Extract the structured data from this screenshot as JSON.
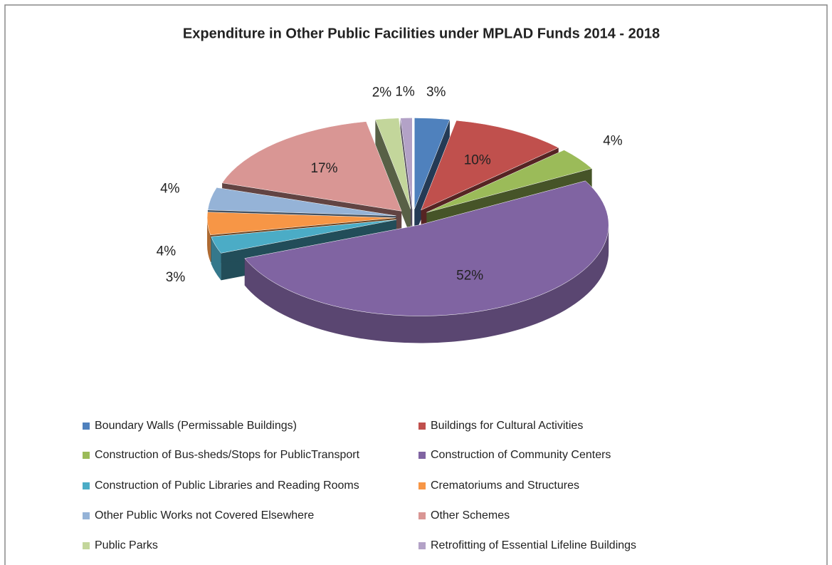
{
  "chart_data": {
    "type": "pie",
    "title": "Expenditure in Other Public Facilities under MPLAD Funds 2014 - 2018",
    "categories": [
      "Boundary Walls (Permissable Buildings)",
      "Buildings for Cultural Activities",
      "Construction of Bus-sheds/Stops for PublicTransport",
      "Construction of Community Centers",
      "Construction of Public Libraries and Reading Rooms",
      "Crematoriums and Structures",
      "Other Public Works not Covered Elsewhere",
      "Other Schemes",
      "Public Parks",
      "Retrofitting of Essential Lifeline Buildings"
    ],
    "values": [
      3,
      10,
      4,
      52,
      3,
      4,
      4,
      17,
      2,
      1
    ],
    "value_labels": [
      "3%",
      "10%",
      "4%",
      "52%",
      "3%",
      "4%",
      "4%",
      "17%",
      "2%",
      "1%"
    ],
    "colors": [
      "#4f81bd",
      "#c0504d",
      "#9bbb59",
      "#8064a2",
      "#4bacc6",
      "#f79646",
      "#95b3d7",
      "#d99694",
      "#c3d69b",
      "#b3a2c7"
    ],
    "legend": "bottom"
  }
}
